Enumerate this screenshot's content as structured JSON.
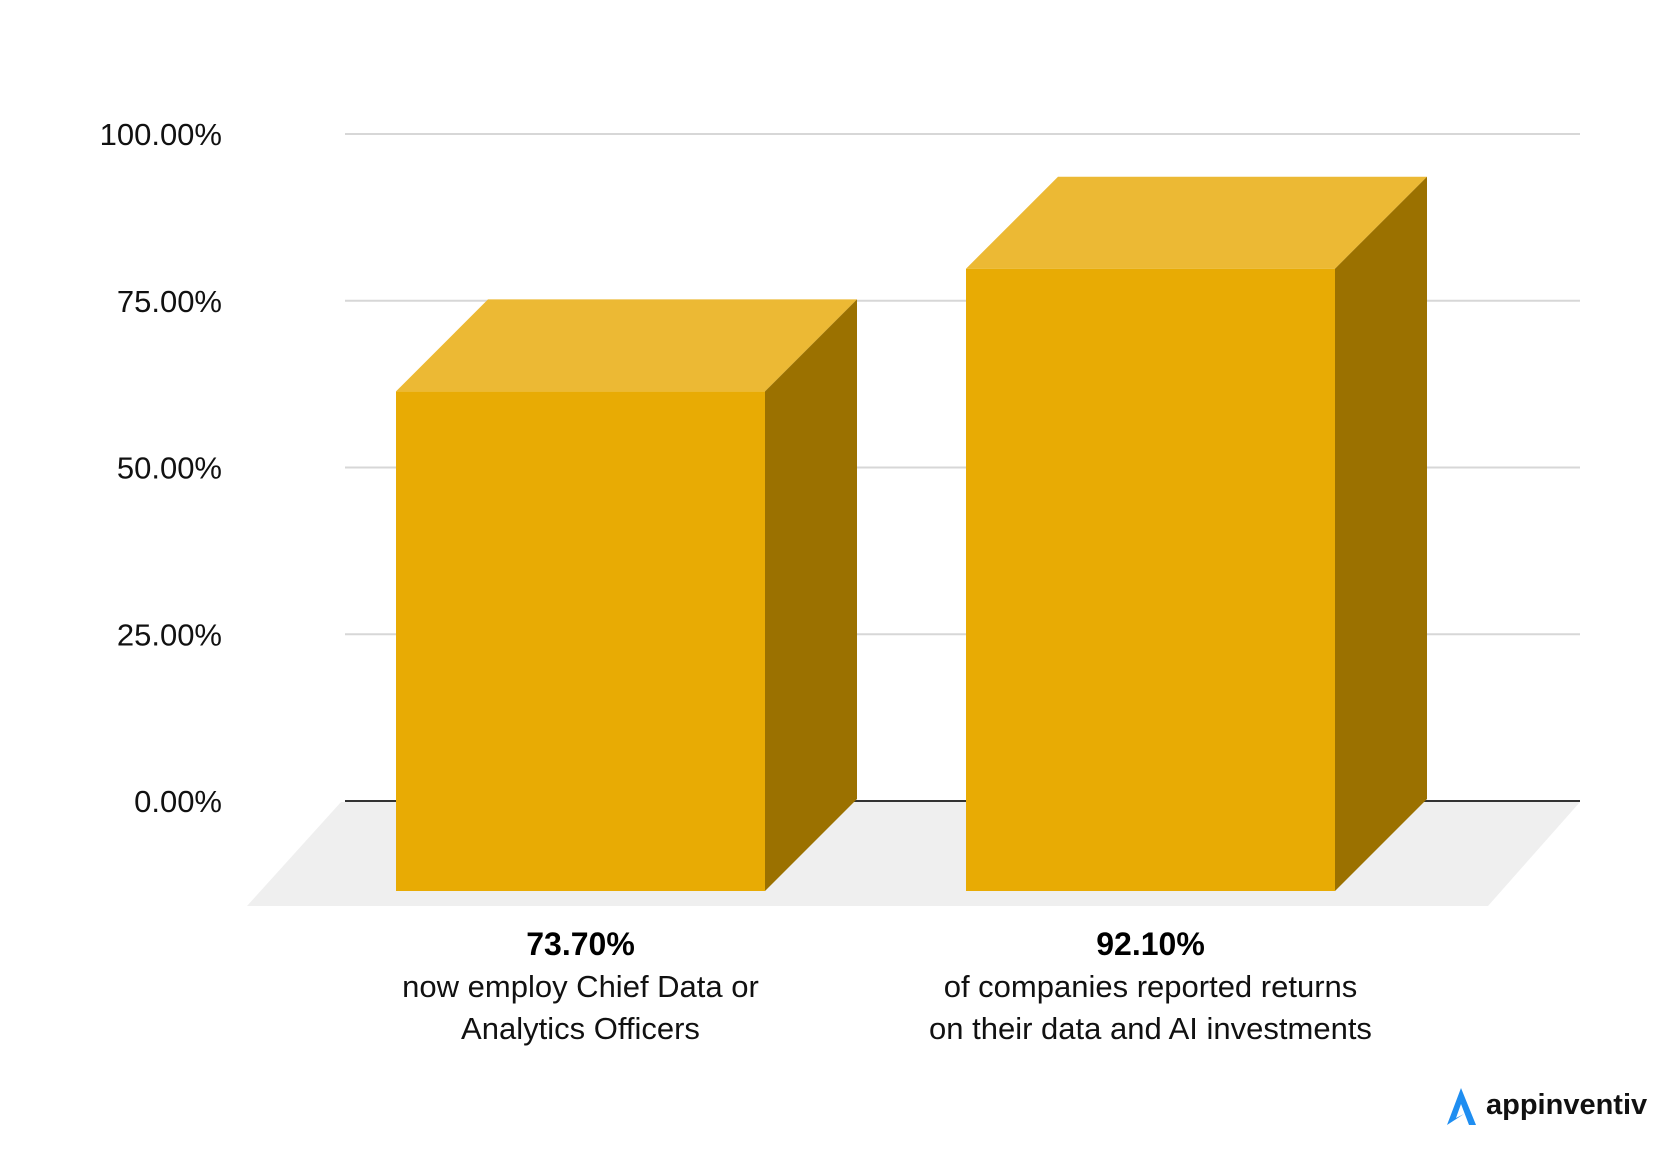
{
  "chart_data": {
    "type": "bar",
    "title": "",
    "xlabel": "",
    "ylabel": "",
    "ylim": [
      0,
      100
    ],
    "yticks": [
      0,
      25,
      50,
      75,
      100
    ],
    "ytick_labels": [
      "0.00%",
      "25.00%",
      "50.00%",
      "75.00%",
      "100.00%"
    ],
    "grid": true,
    "style": "3d-box",
    "categories": [
      {
        "value_label": "73.70%",
        "description_lines": [
          "now employ Chief Data or",
          "Analytics Officers"
        ]
      },
      {
        "value_label": "92.10%",
        "description_lines": [
          "of companies reported returns",
          "on their data and AI investments"
        ]
      }
    ],
    "values": [
      73.7,
      92.1
    ]
  },
  "brand": {
    "logo_text": "appinventiv"
  },
  "colors": {
    "bar_front": "#e8ab04",
    "bar_top": "#ecb934",
    "bar_side": "#9b7100",
    "grid": "#d7d7d7",
    "axis": "#333333",
    "floor": "#efefef",
    "logo_accent": "#1f8ef1"
  }
}
